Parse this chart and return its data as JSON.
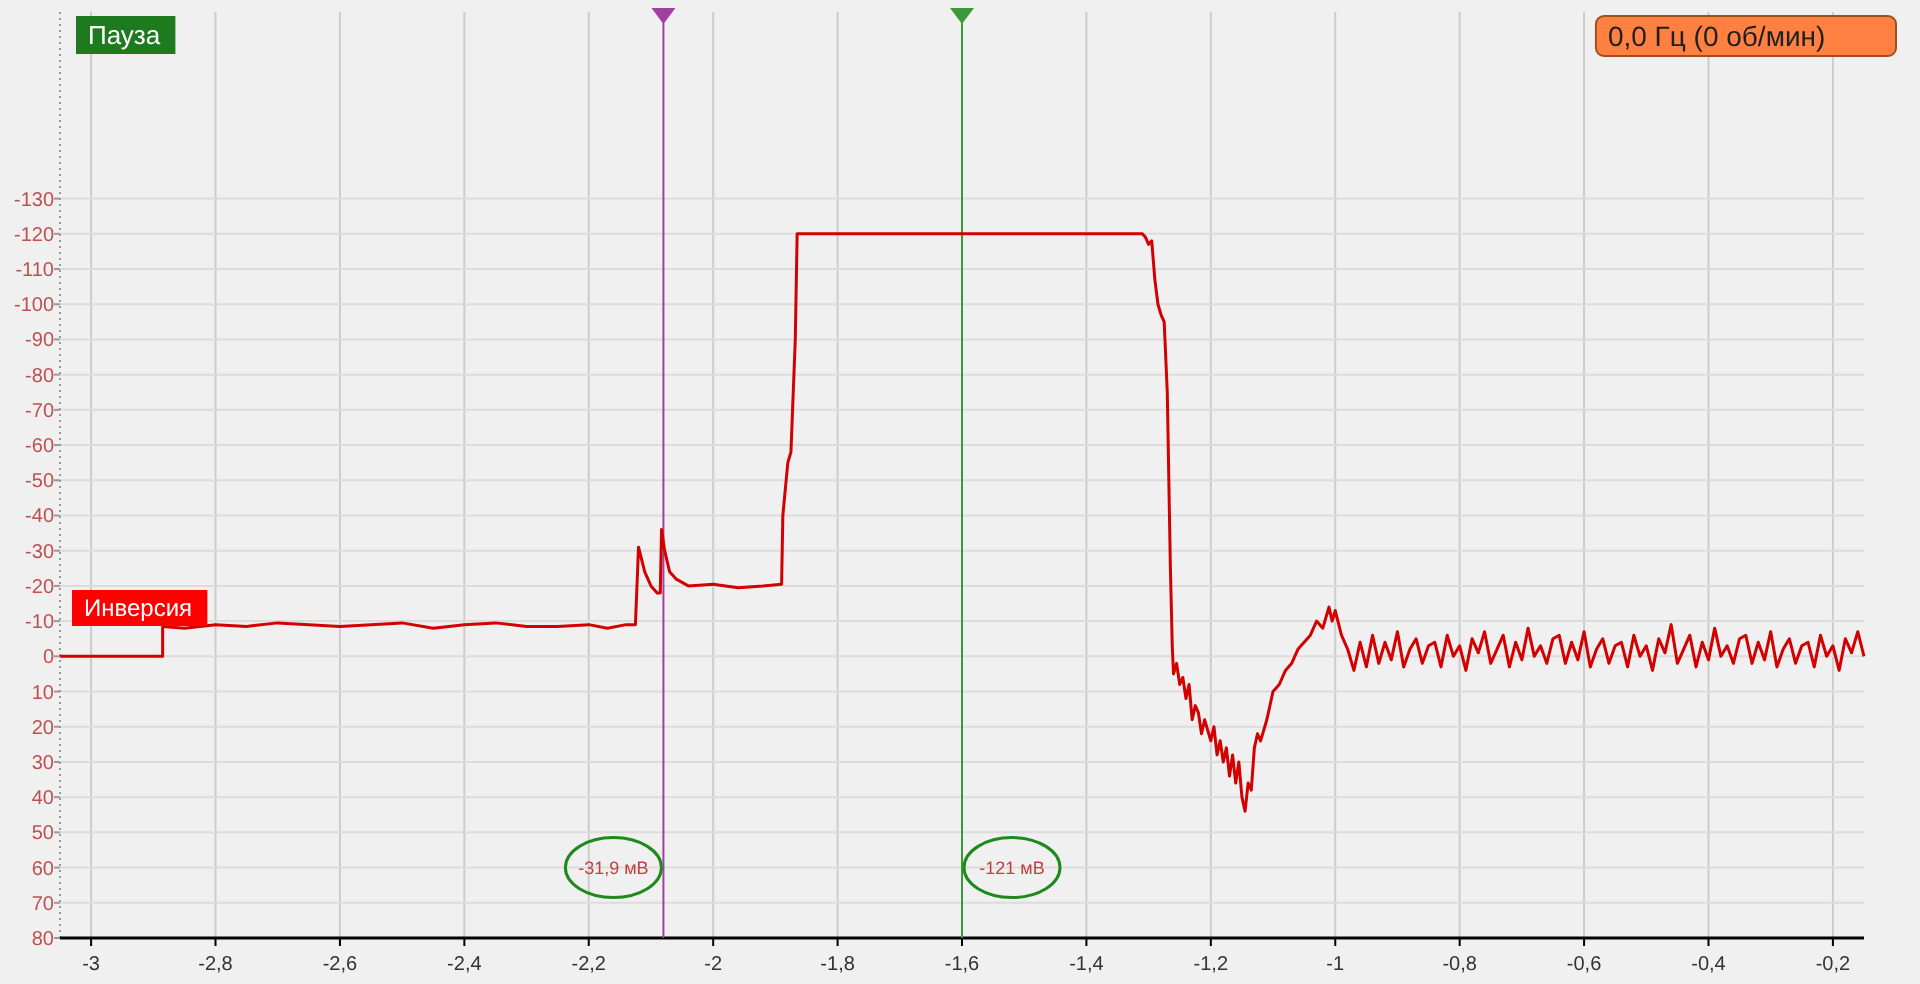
{
  "chart_data": {
    "type": "line",
    "annotations": [
      "Пауза",
      "0,0 Гц (0 об/мин)",
      "Инверсия"
    ],
    "xlim": [
      -3.05,
      -0.15
    ],
    "ylim": [
      80,
      -183
    ],
    "xticks": [
      {
        "value": -3,
        "label": "-3"
      },
      {
        "value": -2.8,
        "label": "-2,8"
      },
      {
        "value": -2.6,
        "label": "-2,6"
      },
      {
        "value": -2.4,
        "label": "-2,4"
      },
      {
        "value": -2.2,
        "label": "-2,2"
      },
      {
        "value": -2,
        "label": "-2"
      },
      {
        "value": -1.8,
        "label": "-1,8"
      },
      {
        "value": -1.6,
        "label": "-1,6"
      },
      {
        "value": -1.4,
        "label": "-1,4"
      },
      {
        "value": -1.2,
        "label": "-1,2"
      },
      {
        "value": -1,
        "label": "-1"
      },
      {
        "value": -0.8,
        "label": "-0,8"
      },
      {
        "value": -0.6,
        "label": "-0,6"
      },
      {
        "value": -0.4,
        "label": "-0,4"
      },
      {
        "value": -0.2,
        "label": "-0,2"
      }
    ],
    "yticks": [
      -130,
      -120,
      -110,
      -100,
      -90,
      -80,
      -70,
      -60,
      -50,
      -40,
      -30,
      -20,
      -10,
      0,
      10,
      20,
      30,
      40,
      50,
      60,
      70,
      80
    ],
    "grid": true,
    "ref_lines": [
      {
        "axis": "x",
        "value": -2.08,
        "label": "-31,9 мВ",
        "color": "#a040a0"
      },
      {
        "axis": "x",
        "value": -1.6,
        "label": "-121 мВ",
        "color": "#3a9a3a"
      }
    ],
    "series": [
      {
        "color": "#d40000",
        "x": [
          -3.05,
          -2.885,
          -2.885,
          -2.85,
          -2.8,
          -2.75,
          -2.7,
          -2.65,
          -2.6,
          -2.55,
          -2.5,
          -2.45,
          -2.4,
          -2.35,
          -2.3,
          -2.25,
          -2.2,
          -2.17,
          -2.14,
          -2.125,
          -2.12,
          -2.11,
          -2.1,
          -2.09,
          -2.085,
          -2.083,
          -2.078,
          -2.07,
          -2.06,
          -2.04,
          -2.0,
          -1.96,
          -1.92,
          -1.89,
          -1.888,
          -1.88,
          -1.875,
          -1.868,
          -1.865,
          -1.31,
          -1.305,
          -1.3,
          -1.295,
          -1.29,
          -1.285,
          -1.28,
          -1.275,
          -1.27,
          -1.265,
          -1.262,
          -1.26,
          -1.255,
          -1.25,
          -1.245,
          -1.24,
          -1.235,
          -1.23,
          -1.225,
          -1.22,
          -1.215,
          -1.21,
          -1.2,
          -1.195,
          -1.19,
          -1.185,
          -1.18,
          -1.175,
          -1.17,
          -1.165,
          -1.16,
          -1.155,
          -1.15,
          -1.145,
          -1.14,
          -1.135,
          -1.13,
          -1.125,
          -1.12,
          -1.11,
          -1.1,
          -1.09,
          -1.08,
          -1.07,
          -1.06,
          -1.05,
          -1.04,
          -1.03,
          -1.02,
          -1.01,
          -1.005,
          -1.0,
          -0.99,
          -0.98,
          -0.97,
          -0.96,
          -0.95,
          -0.94,
          -0.93,
          -0.92,
          -0.91,
          -0.9,
          -0.89,
          -0.88,
          -0.87,
          -0.86,
          -0.85,
          -0.84,
          -0.83,
          -0.82,
          -0.81,
          -0.8,
          -0.79,
          -0.78,
          -0.77,
          -0.76,
          -0.75,
          -0.74,
          -0.73,
          -0.72,
          -0.71,
          -0.7,
          -0.69,
          -0.68,
          -0.67,
          -0.66,
          -0.65,
          -0.64,
          -0.63,
          -0.62,
          -0.61,
          -0.6,
          -0.59,
          -0.58,
          -0.57,
          -0.56,
          -0.55,
          -0.54,
          -0.53,
          -0.52,
          -0.51,
          -0.5,
          -0.49,
          -0.48,
          -0.47,
          -0.46,
          -0.45,
          -0.44,
          -0.43,
          -0.42,
          -0.41,
          -0.4,
          -0.39,
          -0.38,
          -0.37,
          -0.36,
          -0.35,
          -0.34,
          -0.33,
          -0.32,
          -0.31,
          -0.3,
          -0.29,
          -0.28,
          -0.27,
          -0.26,
          -0.25,
          -0.24,
          -0.23,
          -0.22,
          -0.21,
          -0.2,
          -0.19,
          -0.18,
          -0.17,
          -0.16,
          -0.15
        ],
        "values": [
          0,
          0,
          -8.5,
          -8,
          -9,
          -8.5,
          -9.5,
          -9,
          -8.5,
          -9,
          -9.5,
          -8,
          -9,
          -9.5,
          -8.5,
          -8.5,
          -9,
          -8,
          -9,
          -9,
          -31,
          -24,
          -20,
          -18,
          -18,
          -36,
          -30,
          -24,
          -22,
          -20,
          -20.5,
          -19.5,
          -20,
          -20.5,
          -40,
          -55,
          -58,
          -90,
          -120,
          -120,
          -119,
          -117,
          -118,
          -107,
          -100,
          -97,
          -95,
          -75,
          -25,
          -3,
          5,
          2,
          8,
          6,
          12,
          8,
          18,
          14,
          16,
          22,
          18,
          24,
          20,
          28,
          24,
          30,
          26,
          34,
          28,
          36,
          30,
          40,
          44,
          36,
          38,
          26,
          22,
          24,
          18,
          10,
          8,
          4,
          2,
          -2,
          -4,
          -6,
          -10,
          -8,
          -14,
          -10,
          -13,
          -6,
          -2,
          4,
          -4,
          3,
          -6,
          2,
          -4,
          1,
          -7,
          3,
          -2,
          -5,
          2,
          -3,
          -4,
          3,
          -6,
          0,
          -3,
          4,
          -5,
          -1,
          -7,
          2,
          -2,
          -6,
          3,
          -4,
          1,
          -8,
          0,
          -3,
          2,
          -5,
          -6,
          2,
          -4,
          1,
          -7,
          3,
          -2,
          -5,
          2,
          -3,
          -4,
          3,
          -6,
          0,
          -3,
          4,
          -5,
          -1,
          -9,
          2,
          -2,
          -6,
          3,
          -4,
          1,
          -8,
          0,
          -3,
          2,
          -5,
          -6,
          2,
          -4,
          1,
          -7,
          3,
          -2,
          -5,
          2,
          -3,
          -4,
          3,
          -6,
          0,
          -3,
          4,
          -5,
          -1,
          -7,
          0
        ]
      }
    ]
  }
}
